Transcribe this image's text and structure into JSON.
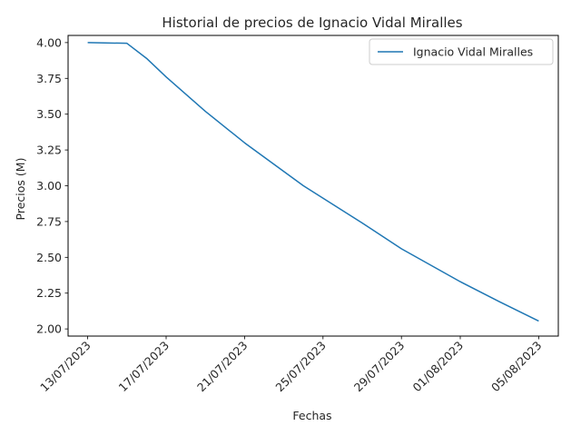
{
  "chart_data": {
    "type": "line",
    "title": "Historial de precios de Ignacio Vidal Miralles",
    "xlabel": "Fechas",
    "ylabel": "Precios (M)",
    "x_tick_labels": [
      "13/07/2023",
      "17/07/2023",
      "21/07/2023",
      "25/07/2023",
      "29/07/2023",
      "01/08/2023",
      "05/08/2023"
    ],
    "x_tick_dates": [
      "2023-07-13",
      "2023-07-17",
      "2023-07-21",
      "2023-07-25",
      "2023-07-29",
      "2023-08-01",
      "2023-08-05"
    ],
    "y_ticks": [
      2.0,
      2.25,
      2.5,
      2.75,
      3.0,
      3.25,
      3.5,
      3.75,
      4.0
    ],
    "y_tick_labels": [
      "2.00",
      "2.25",
      "2.50",
      "2.75",
      "3.00",
      "3.25",
      "3.50",
      "3.75",
      "4.00"
    ],
    "ylim": [
      1.95,
      4.05
    ],
    "xlim": [
      "2023-07-12",
      "2023-08-06"
    ],
    "grid": false,
    "legend_position": "top-right",
    "series": [
      {
        "name": "Ignacio Vidal Miralles",
        "color": "#1f77b4",
        "x": [
          "2023-07-13",
          "2023-07-15",
          "2023-07-16",
          "2023-07-17",
          "2023-07-19",
          "2023-07-21",
          "2023-07-24",
          "2023-07-27",
          "2023-07-29",
          "2023-08-01",
          "2023-08-03",
          "2023-08-05"
        ],
        "y": [
          4.0,
          3.995,
          3.89,
          3.76,
          3.52,
          3.3,
          3.0,
          2.74,
          2.56,
          2.33,
          2.19,
          2.055
        ]
      }
    ]
  }
}
